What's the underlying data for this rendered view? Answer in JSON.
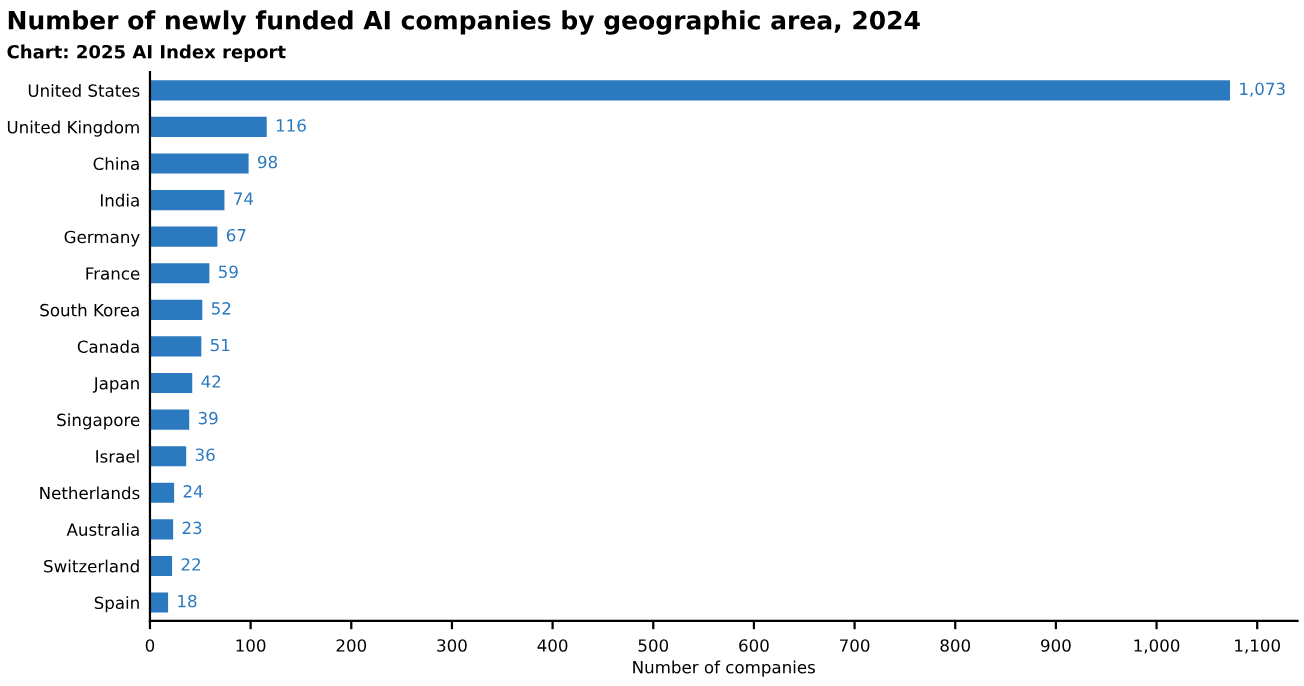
{
  "chart_data": {
    "type": "bar",
    "orientation": "horizontal",
    "title": "Number of newly funded AI companies by geographic area, 2024",
    "annotations": [
      "Chart: 2025 AI Index report"
    ],
    "xlabel": "Number of companies",
    "categories": [
      "United States",
      "United Kingdom",
      "China",
      "India",
      "Germany",
      "France",
      "South Korea",
      "Canada",
      "Japan",
      "Singapore",
      "Israel",
      "Netherlands",
      "Australia",
      "Switzerland",
      "Spain"
    ],
    "values": [
      1073,
      116,
      98,
      74,
      67,
      59,
      52,
      51,
      42,
      39,
      36,
      24,
      23,
      22,
      18
    ],
    "value_labels": [
      "1,073",
      "116",
      "98",
      "74",
      "67",
      "59",
      "52",
      "51",
      "42",
      "39",
      "36",
      "24",
      "23",
      "22",
      "18"
    ],
    "color": "#2b79bf",
    "xlim": [
      0,
      1140
    ],
    "xticks": [
      0,
      100,
      200,
      300,
      400,
      500,
      600,
      700,
      800,
      900,
      {
        "value": 1000,
        "label": "1,000"
      },
      {
        "value": 1100,
        "label": "1,100"
      }
    ],
    "grid": false
  }
}
